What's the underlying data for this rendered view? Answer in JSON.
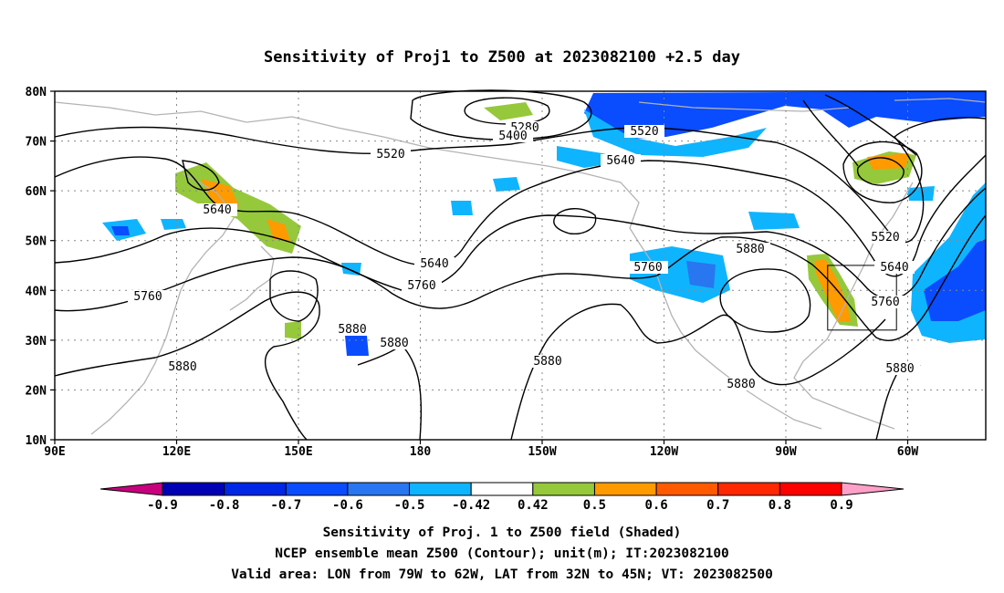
{
  "title": "Sensitivity of Proj1 to Z500 at 2023082100 +2.5 day",
  "map": {
    "lon_ticks": [
      "90E",
      "120E",
      "150E",
      "180",
      "150W",
      "120W",
      "90W",
      "60W"
    ],
    "lat_ticks": [
      "80N",
      "70N",
      "60N",
      "50N",
      "40N",
      "30N",
      "20N",
      "10N"
    ],
    "lon_range": [
      "90E",
      "50W"
    ],
    "lat_range": [
      "10N",
      "80N"
    ],
    "grid": "dotted",
    "valid_box": {
      "lon": [
        "79W",
        "62W"
      ],
      "lat": [
        "32N",
        "45N"
      ]
    },
    "contour_labels": [
      "5280",
      "5400",
      "5520",
      "5520",
      "5640",
      "5640",
      "5640",
      "5520",
      "5640",
      "5760",
      "5760",
      "5760",
      "5760",
      "5880",
      "5880",
      "5880",
      "5880",
      "5880",
      "5880",
      "5880"
    ]
  },
  "colorbar": {
    "labels": [
      "-0.9",
      "-0.8",
      "-0.7",
      "-0.6",
      "-0.5",
      "-0.42",
      "0.42",
      "0.5",
      "0.6",
      "0.7",
      "0.8",
      "0.9"
    ],
    "colors": [
      "#c9007e",
      "#0000b4",
      "#0026e6",
      "#0a4cff",
      "#2876f0",
      "#0fb4ff",
      "#ffffff",
      "#96c83c",
      "#ff9a00",
      "#ff5a00",
      "#ff2800",
      "#ff0000",
      "#ffa0c8"
    ]
  },
  "caption": {
    "line1": "Sensitivity of Proj. 1 to Z500 field (Shaded)",
    "line2": "NCEP ensemble mean Z500 (Contour); unit(m); IT:2023082100",
    "line3": "Valid area: LON from 79W to 62W, LAT from 32N to 45N; VT: 2023082500"
  }
}
